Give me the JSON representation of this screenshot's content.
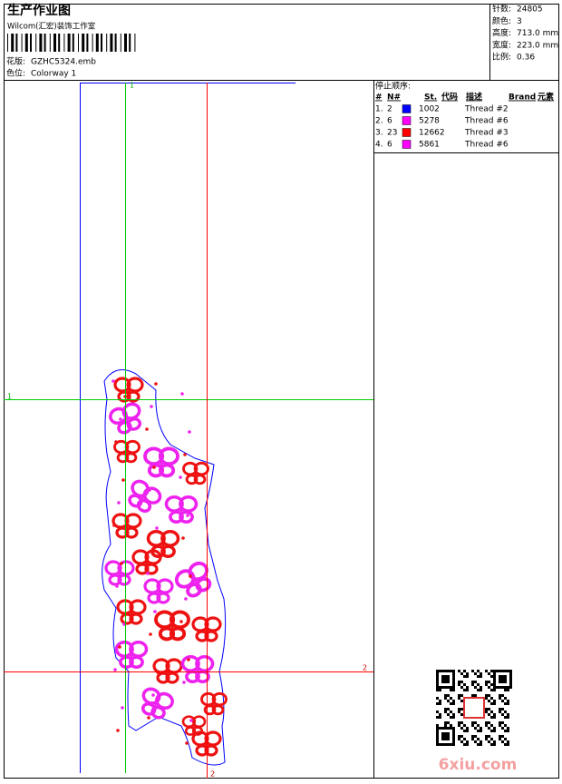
{
  "header": {
    "title": "生产作业图",
    "studio": "Wilcom(汇宏)装饰工作室",
    "design_label": "花版:",
    "design_file": "GZHC5324.emb",
    "colorway_label": "色位:",
    "colorway": "Colorway 1"
  },
  "stats": [
    {
      "label": "针数:",
      "value": "24805"
    },
    {
      "label": "颜色:",
      "value": "3"
    },
    {
      "label": "高度:",
      "value": "713.0 mm"
    },
    {
      "label": "宽度:",
      "value": "223.0 mm"
    },
    {
      "label": "比例:",
      "value": "0.36"
    }
  ],
  "stop_sequence": {
    "title": "停止顺序:",
    "columns": [
      "#",
      "N#",
      "St.",
      "代码",
      "描述",
      "Brand",
      "元素"
    ],
    "rows": [
      {
        "index": "1.",
        "needle": "2",
        "color": "#0000ff",
        "code": "1002",
        "description": "Thread #2"
      },
      {
        "index": "2.",
        "needle": "6",
        "color": "#ff00ff",
        "code": "5278",
        "description": "Thread #6"
      },
      {
        "index": "3.",
        "needle": "23",
        "color": "#ff0000",
        "code": "12662",
        "description": "Thread #3"
      },
      {
        "index": "4.",
        "needle": "6",
        "color": "#ff00ff",
        "code": "5861",
        "description": "Thread #6"
      }
    ]
  },
  "guides": {
    "green_top": "1",
    "green_left": "1",
    "red_bottom": "2",
    "red_right": "2"
  },
  "watermark": "6xiu.com"
}
